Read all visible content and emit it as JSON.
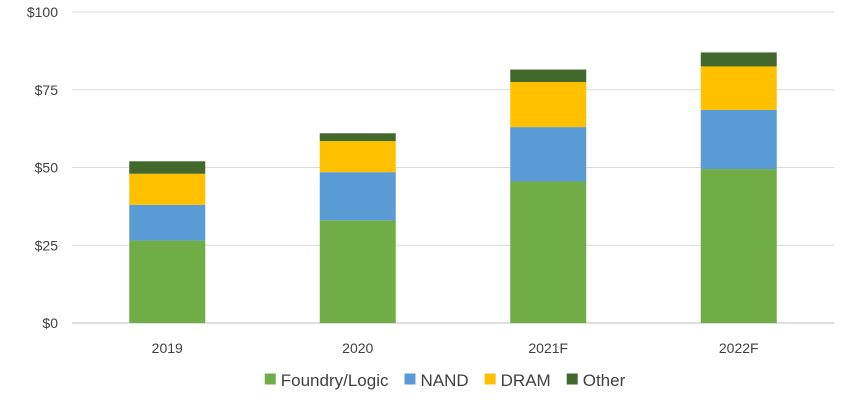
{
  "chart_data": {
    "type": "bar",
    "stacked": true,
    "categories": [
      "2019",
      "2020",
      "2021F",
      "2022F"
    ],
    "series": [
      {
        "name": "Foundry/Logic",
        "color": "#70ad47",
        "values": [
          26.5,
          33,
          45.5,
          49.5
        ]
      },
      {
        "name": "NAND",
        "color": "#5b9bd5",
        "values": [
          11.5,
          15.5,
          17.5,
          19
        ]
      },
      {
        "name": "DRAM",
        "color": "#ffc000",
        "values": [
          10,
          10,
          14.5,
          14
        ]
      },
      {
        "name": "Other",
        "color": "#43682b",
        "values": [
          4,
          2.5,
          4,
          4.5
        ]
      }
    ],
    "ylim": [
      0,
      100
    ],
    "yticks": [
      0,
      25,
      50,
      75,
      100
    ],
    "ytick_labels": [
      "$0",
      "$25",
      "$50",
      "$75",
      "$100"
    ],
    "grid": true,
    "legend_position": "bottom",
    "title": "",
    "xlabel": "",
    "ylabel": ""
  }
}
